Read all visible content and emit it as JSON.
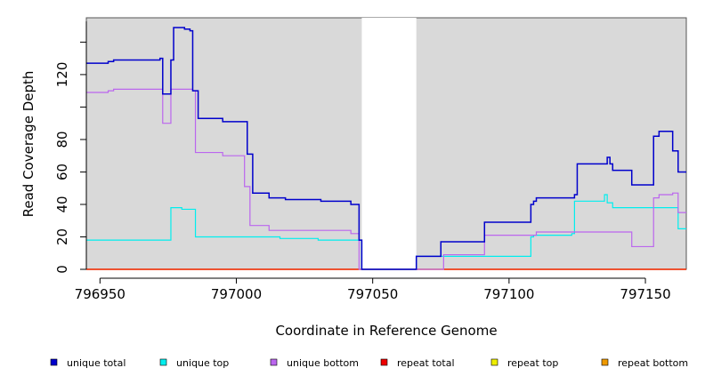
{
  "chart_data": {
    "type": "line",
    "title": "",
    "xlabel": "Coordinate in Reference Genome",
    "ylabel": "Read Coverage Depth",
    "xlim": [
      796945,
      797165
    ],
    "ylim": [
      0,
      155
    ],
    "x_ticks": [
      796950,
      797000,
      797050,
      797100,
      797150
    ],
    "x_tick_labels": [
      "796950",
      "797000",
      "797050",
      "797100",
      "797150"
    ],
    "y_ticks": [
      0,
      20,
      40,
      60,
      80,
      120
    ],
    "y_tick_labels": [
      "0",
      "20",
      "40",
      "60",
      "80",
      "120"
    ],
    "y_minor_ticks": [
      100,
      140
    ],
    "grid": false,
    "background": "#d9d9d9",
    "gap_region": [
      797046,
      797066
    ],
    "legend_position": "bottom",
    "series": [
      {
        "name": "unique total",
        "color": "#0000cc",
        "steps": [
          [
            796945,
            127
          ],
          [
            796953,
            128
          ],
          [
            796955,
            129
          ],
          [
            796972,
            130
          ],
          [
            796973,
            108
          ],
          [
            796976,
            129
          ],
          [
            796977,
            149
          ],
          [
            796981,
            148
          ],
          [
            796983,
            147
          ],
          [
            796984,
            110
          ],
          [
            796986,
            93
          ],
          [
            796995,
            91
          ],
          [
            797004,
            71
          ],
          [
            797006,
            47
          ],
          [
            797012,
            44
          ],
          [
            797018,
            43
          ],
          [
            797031,
            42
          ],
          [
            797042,
            40
          ],
          [
            797045,
            18
          ],
          [
            797046,
            0
          ],
          [
            797066,
            8
          ],
          [
            797075,
            17
          ],
          [
            797091,
            29
          ],
          [
            797108,
            40
          ],
          [
            797109,
            42
          ],
          [
            797110,
            44
          ],
          [
            797124,
            46
          ],
          [
            797125,
            65
          ],
          [
            797136,
            69
          ],
          [
            797137,
            65
          ],
          [
            797138,
            61
          ],
          [
            797145,
            52
          ],
          [
            797153,
            82
          ],
          [
            797155,
            85
          ],
          [
            797160,
            73
          ],
          [
            797162,
            60
          ],
          [
            797165,
            60
          ]
        ]
      },
      {
        "name": "unique top",
        "color": "#00eeee",
        "steps": [
          [
            796945,
            18
          ],
          [
            796976,
            38
          ],
          [
            796980,
            37
          ],
          [
            796985,
            20
          ],
          [
            797004,
            20
          ],
          [
            797016,
            19
          ],
          [
            797030,
            18
          ],
          [
            797046,
            0
          ],
          [
            797066,
            8
          ],
          [
            797075,
            8
          ],
          [
            797108,
            20
          ],
          [
            797109,
            21
          ],
          [
            797123,
            22
          ],
          [
            797124,
            42
          ],
          [
            797135,
            46
          ],
          [
            797136,
            41
          ],
          [
            797138,
            38
          ],
          [
            797160,
            38
          ],
          [
            797162,
            25
          ],
          [
            797165,
            25
          ]
        ]
      },
      {
        "name": "unique bottom",
        "color": "#bb66ee",
        "steps": [
          [
            796945,
            109
          ],
          [
            796953,
            110
          ],
          [
            796955,
            111
          ],
          [
            796972,
            111
          ],
          [
            796973,
            90
          ],
          [
            796976,
            111
          ],
          [
            796981,
            111
          ],
          [
            796984,
            110
          ],
          [
            796985,
            72
          ],
          [
            796995,
            70
          ],
          [
            797003,
            51
          ],
          [
            797005,
            27
          ],
          [
            797012,
            24
          ],
          [
            797041,
            24
          ],
          [
            797042,
            22
          ],
          [
            797045,
            0
          ],
          [
            797076,
            9
          ],
          [
            797091,
            21
          ],
          [
            797110,
            23
          ],
          [
            797145,
            14
          ],
          [
            797153,
            44
          ],
          [
            797155,
            46
          ],
          [
            797160,
            47
          ],
          [
            797162,
            35
          ],
          [
            797165,
            35
          ]
        ]
      },
      {
        "name": "repeat total",
        "color": "#ee0000",
        "steps": [
          [
            796945,
            0
          ],
          [
            797165,
            0
          ]
        ]
      },
      {
        "name": "repeat top",
        "color": "#eeee00",
        "steps": [
          [
            796945,
            0
          ],
          [
            797165,
            0
          ]
        ]
      },
      {
        "name": "repeat bottom",
        "color": "#ee9900",
        "steps": [
          [
            796945,
            0
          ],
          [
            797165,
            0
          ]
        ]
      }
    ]
  }
}
